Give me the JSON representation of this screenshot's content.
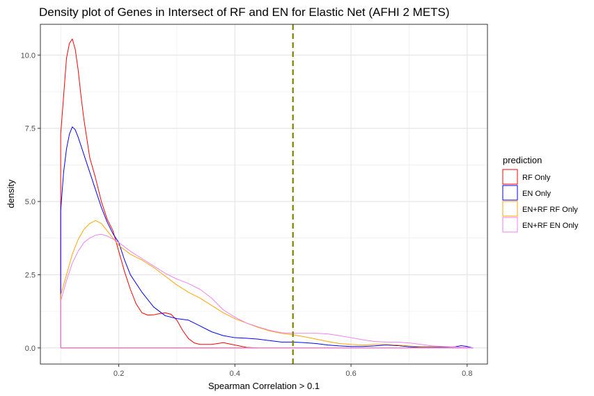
{
  "chart_data": {
    "type": "area",
    "title": "Density plot of Genes in Intersect of RF and EN for Elastic Net (AFHI 2 METS)",
    "xlabel": "Spearman Correlation > 0.1",
    "ylabel": "density",
    "xlim": [
      0.065,
      0.835
    ],
    "ylim": [
      -0.55,
      11.05
    ],
    "xticks": [
      0.2,
      0.4,
      0.6,
      0.8
    ],
    "xtick_labels": [
      "0.2",
      "0.4",
      "0.6",
      "0.8"
    ],
    "yticks": [
      0.0,
      2.5,
      5.0,
      7.5,
      10.0
    ],
    "ytick_labels": [
      "0.0",
      "2.5",
      "5.0",
      "7.5",
      "10.0"
    ],
    "grid": true,
    "legend_title": "prediction",
    "legend_position": "right",
    "vline": {
      "x": 0.5,
      "color": "#808000",
      "style": "dashed"
    },
    "series": [
      {
        "name": "RF Only",
        "color": "#ff0000",
        "x": [
          0.1,
          0.1,
          0.105,
          0.11,
          0.115,
          0.12,
          0.125,
          0.13,
          0.135,
          0.14,
          0.15,
          0.16,
          0.17,
          0.18,
          0.19,
          0.2,
          0.21,
          0.22,
          0.23,
          0.24,
          0.25,
          0.26,
          0.27,
          0.28,
          0.29,
          0.3,
          0.31,
          0.32,
          0.33,
          0.34,
          0.36,
          0.38,
          0.4,
          0.42,
          0.44
        ],
        "y": [
          0.0,
          7.3,
          8.6,
          9.9,
          10.4,
          10.55,
          10.2,
          9.5,
          8.6,
          7.8,
          6.5,
          5.8,
          5.0,
          4.4,
          4.0,
          3.3,
          2.6,
          2.0,
          1.5,
          1.2,
          1.12,
          1.13,
          1.17,
          1.2,
          1.15,
          0.95,
          0.6,
          0.32,
          0.17,
          0.12,
          0.12,
          0.18,
          0.1,
          0.02,
          0.0
        ]
      },
      {
        "name": "EN Only",
        "color": "#0000ff",
        "x": [
          0.1,
          0.1,
          0.105,
          0.11,
          0.115,
          0.12,
          0.125,
          0.13,
          0.14,
          0.15,
          0.16,
          0.17,
          0.18,
          0.19,
          0.2,
          0.21,
          0.22,
          0.24,
          0.26,
          0.28,
          0.3,
          0.32,
          0.34,
          0.36,
          0.38,
          0.4,
          0.42,
          0.44,
          0.46,
          0.48,
          0.5,
          0.52,
          0.54,
          0.56,
          0.58,
          0.6,
          0.62,
          0.64,
          0.66,
          0.68,
          0.7,
          0.72,
          0.74,
          0.76,
          0.78,
          0.79,
          0.8,
          0.81
        ],
        "y": [
          0.0,
          4.7,
          6.0,
          6.8,
          7.3,
          7.55,
          7.45,
          7.2,
          6.6,
          6.0,
          5.4,
          4.8,
          4.3,
          3.9,
          3.6,
          3.0,
          2.5,
          1.9,
          1.4,
          1.1,
          1.0,
          0.95,
          0.75,
          0.55,
          0.42,
          0.35,
          0.33,
          0.3,
          0.25,
          0.2,
          0.2,
          0.18,
          0.15,
          0.1,
          0.07,
          0.05,
          0.05,
          0.07,
          0.1,
          0.08,
          0.04,
          0.02,
          0.02,
          0.02,
          0.04,
          0.08,
          0.05,
          0.0
        ]
      },
      {
        "name": "EN+RF RF Only",
        "color": "#ffa500",
        "x": [
          0.1,
          0.1,
          0.11,
          0.12,
          0.13,
          0.14,
          0.15,
          0.16,
          0.17,
          0.18,
          0.19,
          0.2,
          0.22,
          0.24,
          0.26,
          0.28,
          0.3,
          0.32,
          0.34,
          0.36,
          0.38,
          0.4,
          0.42,
          0.44,
          0.46,
          0.48,
          0.5,
          0.52,
          0.54,
          0.56,
          0.58,
          0.6,
          0.62,
          0.64,
          0.66,
          0.68,
          0.7,
          0.72,
          0.74,
          0.76,
          0.78,
          0.8,
          0.81
        ],
        "y": [
          0.0,
          1.8,
          2.5,
          3.2,
          3.7,
          4.05,
          4.25,
          4.35,
          4.25,
          4.0,
          3.75,
          3.5,
          3.2,
          3.0,
          2.75,
          2.45,
          2.15,
          1.9,
          1.7,
          1.45,
          1.2,
          1.0,
          0.85,
          0.7,
          0.58,
          0.5,
          0.45,
          0.38,
          0.3,
          0.22,
          0.15,
          0.12,
          0.1,
          0.12,
          0.12,
          0.1,
          0.07,
          0.05,
          0.05,
          0.04,
          0.03,
          0.02,
          0.0
        ]
      },
      {
        "name": "EN+RF EN Only",
        "color": "#ee82ee",
        "x": [
          0.1,
          0.1,
          0.11,
          0.12,
          0.13,
          0.14,
          0.15,
          0.16,
          0.17,
          0.18,
          0.19,
          0.2,
          0.22,
          0.24,
          0.26,
          0.28,
          0.3,
          0.32,
          0.34,
          0.36,
          0.38,
          0.4,
          0.42,
          0.44,
          0.46,
          0.48,
          0.5,
          0.52,
          0.54,
          0.56,
          0.58,
          0.6,
          0.62,
          0.64,
          0.66,
          0.68,
          0.7,
          0.72,
          0.74,
          0.76,
          0.78,
          0.8,
          0.81
        ],
        "y": [
          0.0,
          1.6,
          2.3,
          2.9,
          3.3,
          3.6,
          3.75,
          3.85,
          3.88,
          3.82,
          3.72,
          3.6,
          3.3,
          3.05,
          2.8,
          2.55,
          2.35,
          2.2,
          2.0,
          1.7,
          1.3,
          1.05,
          0.85,
          0.72,
          0.6,
          0.52,
          0.5,
          0.5,
          0.5,
          0.48,
          0.42,
          0.35,
          0.28,
          0.22,
          0.2,
          0.2,
          0.17,
          0.12,
          0.07,
          0.05,
          0.03,
          0.02,
          0.0
        ]
      }
    ]
  }
}
